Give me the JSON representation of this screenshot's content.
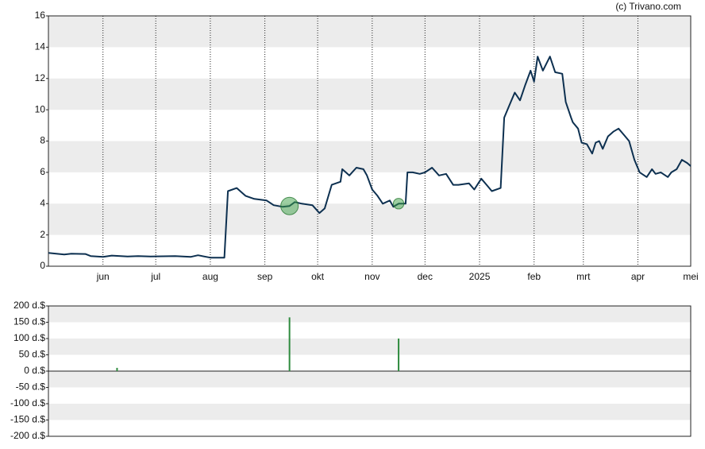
{
  "chart_data": [
    {
      "type": "line",
      "annotation": "(c) Trivano.com",
      "xlim": [
        0,
        365
      ],
      "xticks": [
        {
          "value": 31,
          "label": "jun"
        },
        {
          "value": 61,
          "label": "jul"
        },
        {
          "value": 92,
          "label": "aug"
        },
        {
          "value": 123,
          "label": "sep"
        },
        {
          "value": 153,
          "label": "okt"
        },
        {
          "value": 184,
          "label": "nov"
        },
        {
          "value": 214,
          "label": "dec"
        },
        {
          "value": 245,
          "label": "2025"
        },
        {
          "value": 276,
          "label": "feb"
        },
        {
          "value": 304,
          "label": "mrt"
        },
        {
          "value": 335,
          "label": "apr"
        },
        {
          "value": 365,
          "label": "mei"
        }
      ],
      "ylim": [
        0,
        16
      ],
      "yticks": [
        0,
        2,
        4,
        6,
        8,
        10,
        12,
        14,
        16
      ],
      "grid": true,
      "series": [
        {
          "color": "#0d3050",
          "x": [
            0,
            9,
            13,
            21,
            24,
            31,
            36,
            45,
            51,
            58,
            72,
            81,
            85,
            92,
            100,
            102,
            107,
            112,
            117,
            124,
            128,
            133,
            137,
            140,
            144,
            150,
            154,
            157,
            161,
            166,
            167,
            171,
            175,
            179,
            181,
            184,
            187,
            190,
            194,
            196,
            199,
            203,
            204,
            207,
            211,
            214,
            218,
            222,
            226,
            230,
            233,
            239,
            242,
            246,
            249,
            252,
            257,
            259,
            262,
            265,
            268,
            271,
            274,
            276,
            278,
            281,
            285,
            288,
            292,
            294,
            297,
            298,
            301,
            303,
            306,
            309,
            311,
            313,
            315,
            318,
            321,
            324,
            327,
            330,
            333,
            336,
            340,
            343,
            345,
            348,
            352,
            354,
            357,
            360,
            363,
            365
          ],
          "values": [
            0.85,
            0.75,
            0.8,
            0.78,
            0.65,
            0.6,
            0.68,
            0.62,
            0.65,
            0.62,
            0.65,
            0.6,
            0.7,
            0.55,
            0.55,
            4.8,
            5.0,
            4.5,
            4.3,
            4.2,
            3.9,
            3.8,
            3.85,
            4.1,
            4.0,
            3.9,
            3.4,
            3.7,
            5.2,
            5.4,
            6.2,
            5.8,
            6.3,
            6.2,
            5.8,
            4.9,
            4.5,
            4.0,
            4.2,
            3.8,
            4.0,
            4.0,
            6.0,
            6.0,
            5.9,
            6.0,
            6.3,
            5.8,
            5.9,
            5.2,
            5.2,
            5.3,
            4.9,
            5.6,
            5.2,
            4.8,
            5.0,
            9.5,
            10.3,
            11.1,
            10.6,
            11.6,
            12.5,
            11.8,
            13.4,
            12.5,
            13.4,
            12.4,
            12.3,
            10.5,
            9.5,
            9.2,
            8.8,
            7.9,
            7.8,
            7.2,
            7.9,
            8.0,
            7.5,
            8.3,
            8.6,
            8.8,
            8.4,
            8.0,
            6.8,
            6.0,
            5.7,
            6.2,
            5.9,
            6.0,
            5.7,
            6.0,
            6.2,
            6.8,
            6.6,
            6.4
          ]
        }
      ]
    },
    {
      "type": "bar",
      "xlim": [
        0,
        365
      ],
      "ylim": [
        -200,
        200
      ],
      "yticks": [
        {
          "value": -200,
          "label": "-200 d.$"
        },
        {
          "value": -150,
          "label": "-150 d.$"
        },
        {
          "value": -100,
          "label": "-100 d.$"
        },
        {
          "value": -50,
          "label": "-50 d.$"
        },
        {
          "value": 0,
          "label": "0 d.$"
        },
        {
          "value": 50,
          "label": "50 d.$"
        },
        {
          "value": 100,
          "label": "100 d.$"
        },
        {
          "value": 150,
          "label": "150 d.$"
        },
        {
          "value": 200,
          "label": "200 d.$"
        }
      ],
      "series": [
        {
          "color": "#2e8b3e",
          "x": [
            39,
            137,
            199
          ],
          "values": [
            10,
            165,
            100
          ]
        }
      ]
    }
  ]
}
